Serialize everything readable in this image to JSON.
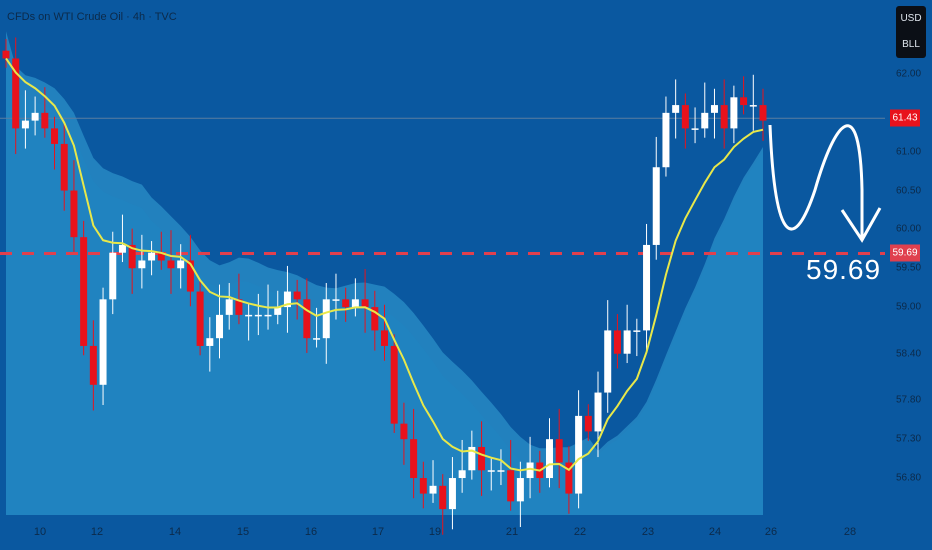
{
  "header": {
    "title": "CFDs on WTI Crude Oil · 4h · TVC",
    "currency": "USD",
    "unit": "BLL"
  },
  "colors": {
    "background": "#0a58a0",
    "up": "#ffffff",
    "down": "#e8121c",
    "ema": "#e8e84a",
    "band": "#2a94cc",
    "dashed": "#e0404e"
  },
  "annotation": {
    "target_label": "59.69"
  },
  "chart_data": {
    "type": "candlestick",
    "title": "CFDs on WTI Crude Oil · 4h · TVC",
    "y_ticks": [
      "62.00",
      "61.00",
      "60.50",
      "60.00",
      "59.50",
      "59.00",
      "58.40",
      "57.80",
      "57.30",
      "56.80"
    ],
    "y_tick_values": [
      62.0,
      61.0,
      60.5,
      60.0,
      59.5,
      59.0,
      58.4,
      57.8,
      57.3,
      56.8
    ],
    "x_ticks": [
      "10",
      "12",
      "14",
      "15",
      "16",
      "17",
      "19",
      "21",
      "22",
      "23",
      "24",
      "26",
      "28"
    ],
    "ylim": [
      56.2,
      62.6
    ],
    "last_price": "61.43",
    "last_price_value": 61.43,
    "target_price": "59.69",
    "target_value": 59.69,
    "closes": [
      62.2,
      61.3,
      61.4,
      61.5,
      61.3,
      61.1,
      60.5,
      59.9,
      58.5,
      58.0,
      59.1,
      59.7,
      59.8,
      59.5,
      59.6,
      59.7,
      59.6,
      59.5,
      59.6,
      59.2,
      58.5,
      58.6,
      58.9,
      59.1,
      58.9,
      58.9,
      58.9,
      58.9,
      59.0,
      59.2,
      59.1,
      58.6,
      58.6,
      59.1,
      59.1,
      59.0,
      59.1,
      59.0,
      58.7,
      58.5,
      57.5,
      57.3,
      56.8,
      56.6,
      56.7,
      56.4,
      56.8,
      56.9,
      57.2,
      56.9,
      56.9,
      56.9,
      56.5,
      56.8,
      57.0,
      56.8,
      57.3,
      57.0,
      56.6,
      57.6,
      57.4,
      57.9,
      58.7,
      58.4,
      58.7,
      58.7,
      59.8,
      60.8,
      61.5,
      61.6,
      61.3,
      61.3,
      61.5,
      61.6,
      61.3,
      61.7,
      61.6,
      61.6,
      61.4
    ]
  }
}
